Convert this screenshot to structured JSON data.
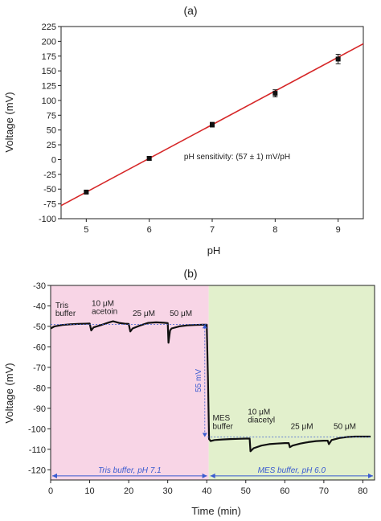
{
  "chart_data": [
    {
      "type": "scatter",
      "panel_label": "(a)",
      "xlabel": "pH",
      "ylabel": "Voltage (mV)",
      "xlim": [
        4.6,
        9.4
      ],
      "ylim": [
        -100,
        225
      ],
      "xticks": [
        "5",
        "6",
        "7",
        "8",
        "9"
      ],
      "yticks": [
        "-100",
        "-75",
        "-50",
        "-25",
        "0",
        "25",
        "50",
        "75",
        "100",
        "125",
        "150",
        "175",
        "200",
        "225"
      ],
      "grid": false,
      "series": [
        {
          "points": [
            {
              "x": 5,
              "y": -55,
              "err": 2
            },
            {
              "x": 6,
              "y": 2,
              "err": 3
            },
            {
              "x": 7,
              "y": 59,
              "err": 4
            },
            {
              "x": 8,
              "y": 112,
              "err": 6
            },
            {
              "x": 9,
              "y": 170,
              "err": 8
            }
          ],
          "color": "#111111"
        }
      ],
      "fit_line": {
        "slope": 57,
        "intercept": -340,
        "x_range": [
          4.6,
          9.4
        ],
        "color": "#d62728"
      },
      "annotation": "pH sensitivity: (57 ± 1) mV/pH"
    },
    {
      "type": "line",
      "panel_label": "(b)",
      "xlabel": "Time (min)",
      "ylabel": "Voltage (mV)",
      "xlim": [
        0,
        83
      ],
      "ylim": [
        -125,
        -30
      ],
      "xticks": [
        "0",
        "10",
        "20",
        "30",
        "40",
        "50",
        "60",
        "70",
        "80"
      ],
      "yticks": [
        "-30",
        "-40",
        "-50",
        "-60",
        "-70",
        "-80",
        "-90",
        "-100",
        "-110",
        "-120"
      ],
      "grid": false,
      "regions": [
        {
          "label": "Tris buffer, pH 7.1",
          "x_range": [
            0,
            40.5
          ],
          "color": "#f8d5e6"
        },
        {
          "label": "MES buffer, pH 6.0",
          "x_range": [
            40.5,
            83
          ],
          "color": "#e2f0cc"
        }
      ],
      "trace": {
        "color": "#111111",
        "x": [
          0,
          1,
          3,
          5,
          7,
          9,
          10,
          10.4,
          11,
          13,
          15,
          16,
          17.5,
          19,
          20,
          20.4,
          21,
          23,
          25,
          27,
          29,
          30,
          30.2,
          30.6,
          31,
          33,
          35,
          37,
          39,
          40,
          40.3,
          40.6,
          41,
          42,
          44,
          46,
          48,
          50,
          51,
          51.2,
          52,
          54,
          56,
          58,
          60,
          61,
          61.3,
          62,
          64,
          66,
          68,
          70,
          71,
          71.3,
          72,
          74,
          76,
          78,
          80,
          82
        ],
        "y": [
          -51,
          -50,
          -49.3,
          -49,
          -48.8,
          -48.7,
          -48.6,
          -52,
          -50.5,
          -49.3,
          -48,
          -47.5,
          -48.3,
          -48.7,
          -48.8,
          -52.5,
          -51,
          -49.5,
          -48.3,
          -48,
          -48.2,
          -48.4,
          -58,
          -52,
          -51,
          -50,
          -49.5,
          -49.3,
          -49.2,
          -49.2,
          -75,
          -105,
          -106,
          -105.5,
          -105.2,
          -105,
          -104.9,
          -104.8,
          -104.8,
          -111,
          -109.5,
          -108.2,
          -107.5,
          -107.2,
          -107,
          -107,
          -109,
          -108.2,
          -107.2,
          -106.5,
          -106,
          -105.8,
          -105.8,
          -107.5,
          -105.5,
          -104.5,
          -104,
          -103.8,
          -103.8,
          -103.8
        ]
      },
      "annotations": [
        {
          "text": "Tris",
          "x": 1.2,
          "y": -41
        },
        {
          "text": "buffer",
          "x": 1.2,
          "y": -45
        },
        {
          "text": "10 μM",
          "x": 10.5,
          "y": -40
        },
        {
          "text": "acetoin",
          "x": 10.5,
          "y": -44
        },
        {
          "text": "25 μM",
          "x": 21,
          "y": -45
        },
        {
          "text": "50 μM",
          "x": 30.5,
          "y": -45
        },
        {
          "text": "MES",
          "x": 41.5,
          "y": -96
        },
        {
          "text": "buffer",
          "x": 41.5,
          "y": -100
        },
        {
          "text": "10 μM",
          "x": 50.5,
          "y": -93
        },
        {
          "text": "diacetyl",
          "x": 50.5,
          "y": -97
        },
        {
          "text": "25 μM",
          "x": 61.5,
          "y": -100
        },
        {
          "text": "50 μM",
          "x": 72.5,
          "y": -100
        }
      ],
      "step_marker": {
        "text": "55 mV",
        "x": 39.5,
        "y_from": -49,
        "y_to": -104
      }
    }
  ]
}
